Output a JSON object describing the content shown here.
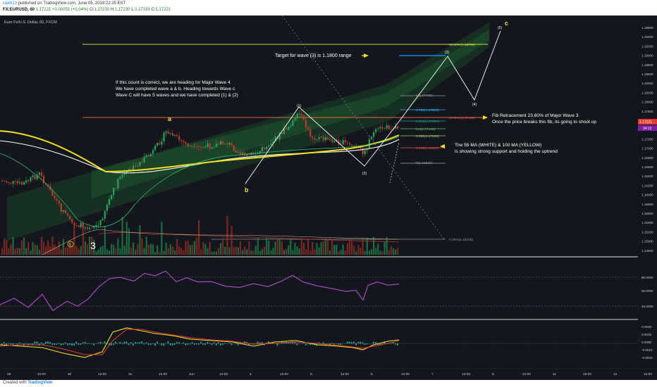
{
  "header": {
    "user": "rajeh13",
    "published": "published on TradingView.com, June 05, 2018 22:25 EST",
    "symbol": "FX:EURUSD, 60",
    "last": "1.17221",
    "change": "+0.00051 (+0.04%)",
    "o_label": "O:",
    "o": "1.17230",
    "h_label": "H:",
    "h": "1.17230",
    "l_label": "L:",
    "l": "1.17193",
    "c_label": "C:",
    "c": "1.17221"
  },
  "chart": {
    "pair_title": "Euro Fx/U.S. Dollar, 60, FXCM",
    "current_price": "1.17221",
    "countdown": "34:12",
    "y_axis_labels": [
      "1.19600",
      "1.19400",
      "1.19200",
      "1.19000",
      "1.18800",
      "1.18600",
      "1.18400",
      "1.18200",
      "1.18000",
      "1.17800",
      "1.17600",
      "1.17400",
      "1.17200",
      "1.17000",
      "1.16800",
      "1.16600",
      "1.16400",
      "1.16200",
      "1.16000",
      "1.15800",
      "1.15600",
      "1.15400",
      "1.15200",
      "1.15000",
      "1.14800"
    ],
    "rsi_labels": [
      "80.0000",
      "60.0000",
      "40.0000"
    ],
    "macd_labels": [
      "0.0020",
      "0.0010",
      "0.0000",
      "-0.0010",
      "-0.0020"
    ],
    "x_axis_labels": [
      "29",
      "12:00",
      "30",
      "12:00",
      "31",
      "12:00",
      "Jun",
      "12:00",
      "4",
      "15:00",
      "5",
      "12:00",
      "6",
      "12:00",
      "7",
      "12:00",
      "8",
      "12:00",
      "11",
      "15:00",
      "12",
      "12:00"
    ],
    "fib_levels": [
      {
        "label": "38.20%(1.18799)",
        "color": "#d4d84a"
      },
      {
        "label": "1(1.17778)",
        "color": "#9e9e9e"
      },
      {
        "label": "0.786(1.17509)",
        "color": "#29b6f6"
      },
      {
        "label": "23.60%(1.17368)",
        "color": "#ef5350"
      },
      {
        "label": "0.618(1.17297)",
        "color": "#26a69a"
      },
      {
        "label": "0.5(1.17149)",
        "color": "#66bb6a"
      },
      {
        "label": "0.382(1.17000)",
        "color": "#9ccc65"
      },
      {
        "label": "0.236(1.16817)",
        "color": "#ef5350"
      },
      {
        "label": "0(1.16520)",
        "color": "#9e9e9e"
      },
      {
        "label": "0.00%(1.15106)",
        "color": "#9e9e9e"
      }
    ],
    "wave_labels": {
      "a": "a",
      "b": "b",
      "c": "c",
      "w1": "(1)",
      "w2": "(2)",
      "w3": "(3)",
      "w4": "(4)",
      "w5": "(5)",
      "big3": "3",
      "circ5": "5"
    },
    "annotations": {
      "target": "Target for wave (3) is 1.1800 range",
      "count_line1": "If this count is correct, we are heading for Major Wave 4",
      "count_line2": "We have completed wave a & b. Heading towards Wave c",
      "count_line3": "Wave C will have 5 waves and we have completed (1) & (2)",
      "fib_line1": "Fib Retracement 23.60% of Major Wave 3",
      "fib_line2": "Once the price breaks this fib, its going to shoot up",
      "ma_line1": "The 55 MA (WHITE) & 100 MA (YELLOW)",
      "ma_line2": "is showing strong support and holding the uptrend"
    },
    "colors": {
      "bg": "#13161d",
      "up": "#26a65b",
      "down": "#c0392b",
      "ma55": "#ffffff",
      "ma100": "#f5e020",
      "annotation": "#ffffff",
      "arrow": "#f5e020",
      "rsi": "#b64ad1",
      "macd": "#f5e020",
      "signal": "#e53935",
      "hist": "#26a69a"
    }
  },
  "footer": {
    "created_with": "Created with",
    "brand": "TradingView"
  }
}
